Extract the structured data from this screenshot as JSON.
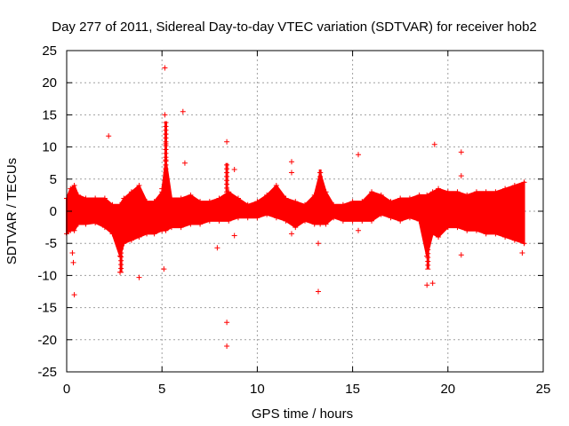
{
  "chart_data": {
    "type": "scatter",
    "title": "Day 277 of 2011, Sidereal Day-to-day VTEC variation (SDTVAR) for receiver hob2",
    "xlabel": "GPS time / hours",
    "ylabel": "SDTVAR / TECUs",
    "xlim": [
      0,
      25
    ],
    "ylim": [
      -25,
      25
    ],
    "xticks": [
      0,
      5,
      10,
      15,
      20,
      25
    ],
    "yticks": [
      -25,
      -20,
      -15,
      -10,
      -5,
      0,
      5,
      10,
      15,
      20,
      25
    ],
    "grid": true,
    "marker": "+",
    "series_color": "#ff0000",
    "band_description": "dense continuous band of points along the time axis (hours, [min, max] TECU)",
    "band": [
      [
        0.0,
        -3.5,
        2.0
      ],
      [
        0.2,
        -3.0,
        3.5
      ],
      [
        0.4,
        -3.0,
        4.0
      ],
      [
        0.6,
        -2.0,
        2.5
      ],
      [
        1.0,
        -2.0,
        2.0
      ],
      [
        1.5,
        -1.8,
        2.0
      ],
      [
        2.0,
        -2.5,
        2.0
      ],
      [
        2.4,
        -3.5,
        1.0
      ],
      [
        2.8,
        -7.0,
        1.0
      ],
      [
        3.0,
        -5.0,
        2.0
      ],
      [
        3.4,
        -4.5,
        3.0
      ],
      [
        3.8,
        -4.0,
        4.0
      ],
      [
        4.2,
        -3.5,
        1.5
      ],
      [
        4.6,
        -3.5,
        1.5
      ],
      [
        5.0,
        -3.0,
        3.0
      ],
      [
        5.2,
        -3.0,
        8.0
      ],
      [
        5.5,
        -2.5,
        2.0
      ],
      [
        6.0,
        -2.5,
        2.0
      ],
      [
        6.5,
        -2.0,
        2.5
      ],
      [
        7.0,
        -2.0,
        1.5
      ],
      [
        7.5,
        -1.5,
        1.5
      ],
      [
        8.0,
        -1.5,
        2.0
      ],
      [
        8.5,
        -1.5,
        3.0
      ],
      [
        9.0,
        -1.0,
        2.0
      ],
      [
        9.5,
        -1.0,
        1.0
      ],
      [
        10.0,
        -1.0,
        1.5
      ],
      [
        10.5,
        -0.5,
        2.5
      ],
      [
        11.0,
        -1.0,
        4.0
      ],
      [
        11.5,
        -1.5,
        2.0
      ],
      [
        12.0,
        -2.5,
        1.5
      ],
      [
        12.5,
        -1.5,
        1.0
      ],
      [
        13.0,
        -2.0,
        2.5
      ],
      [
        13.3,
        -2.0,
        6.0
      ],
      [
        13.6,
        -2.0,
        3.0
      ],
      [
        14.0,
        -1.0,
        1.0
      ],
      [
        14.5,
        -1.5,
        1.0
      ],
      [
        15.0,
        -1.5,
        1.5
      ],
      [
        15.5,
        -1.5,
        1.5
      ],
      [
        16.0,
        -1.5,
        3.0
      ],
      [
        16.5,
        -0.5,
        2.5
      ],
      [
        17.0,
        -1.0,
        1.5
      ],
      [
        17.5,
        -1.5,
        2.0
      ],
      [
        18.0,
        -1.0,
        2.0
      ],
      [
        18.5,
        -1.5,
        2.5
      ],
      [
        18.9,
        -7.0,
        2.5
      ],
      [
        19.2,
        -3.5,
        3.0
      ],
      [
        19.5,
        -4.0,
        3.5
      ],
      [
        20.0,
        -2.5,
        3.0
      ],
      [
        20.5,
        -2.5,
        3.0
      ],
      [
        21.0,
        -3.0,
        2.5
      ],
      [
        21.5,
        -3.0,
        3.0
      ],
      [
        22.0,
        -3.5,
        3.0
      ],
      [
        22.5,
        -3.5,
        3.0
      ],
      [
        23.0,
        -4.0,
        3.5
      ],
      [
        23.5,
        -4.5,
        4.0
      ],
      [
        24.0,
        -5.0,
        4.5
      ]
    ],
    "outliers": [
      [
        0.3,
        -6.5
      ],
      [
        0.35,
        -8.0
      ],
      [
        0.4,
        -13.0
      ],
      [
        2.2,
        11.7
      ],
      [
        2.8,
        -9.5
      ],
      [
        3.8,
        -10.3
      ],
      [
        5.0,
        3.5
      ],
      [
        5.1,
        -9.0
      ],
      [
        5.15,
        22.3
      ],
      [
        5.15,
        15.0
      ],
      [
        5.2,
        12.0
      ],
      [
        5.2,
        10.5
      ],
      [
        6.1,
        15.5
      ],
      [
        6.2,
        7.5
      ],
      [
        7.9,
        -5.7
      ],
      [
        8.4,
        -17.3
      ],
      [
        8.4,
        -21.0
      ],
      [
        8.4,
        10.8
      ],
      [
        8.8,
        6.5
      ],
      [
        8.8,
        -3.8
      ],
      [
        11.8,
        7.7
      ],
      [
        11.8,
        6.0
      ],
      [
        11.8,
        -3.5
      ],
      [
        13.2,
        -12.5
      ],
      [
        13.2,
        -5.0
      ],
      [
        15.3,
        8.8
      ],
      [
        15.3,
        -3.0
      ],
      [
        18.9,
        -11.5
      ],
      [
        19.2,
        -11.2
      ],
      [
        19.3,
        10.4
      ],
      [
        20.7,
        9.2
      ],
      [
        20.7,
        5.5
      ],
      [
        20.7,
        -6.8
      ],
      [
        23.9,
        -6.5
      ]
    ],
    "spikes": [
      [
        5.2,
        3.0,
        14.0
      ],
      [
        13.3,
        3.0,
        6.5
      ],
      [
        8.4,
        3.0,
        7.5
      ],
      [
        18.95,
        -9.0,
        -3.0
      ],
      [
        2.85,
        -9.5,
        -5.0
      ]
    ]
  }
}
